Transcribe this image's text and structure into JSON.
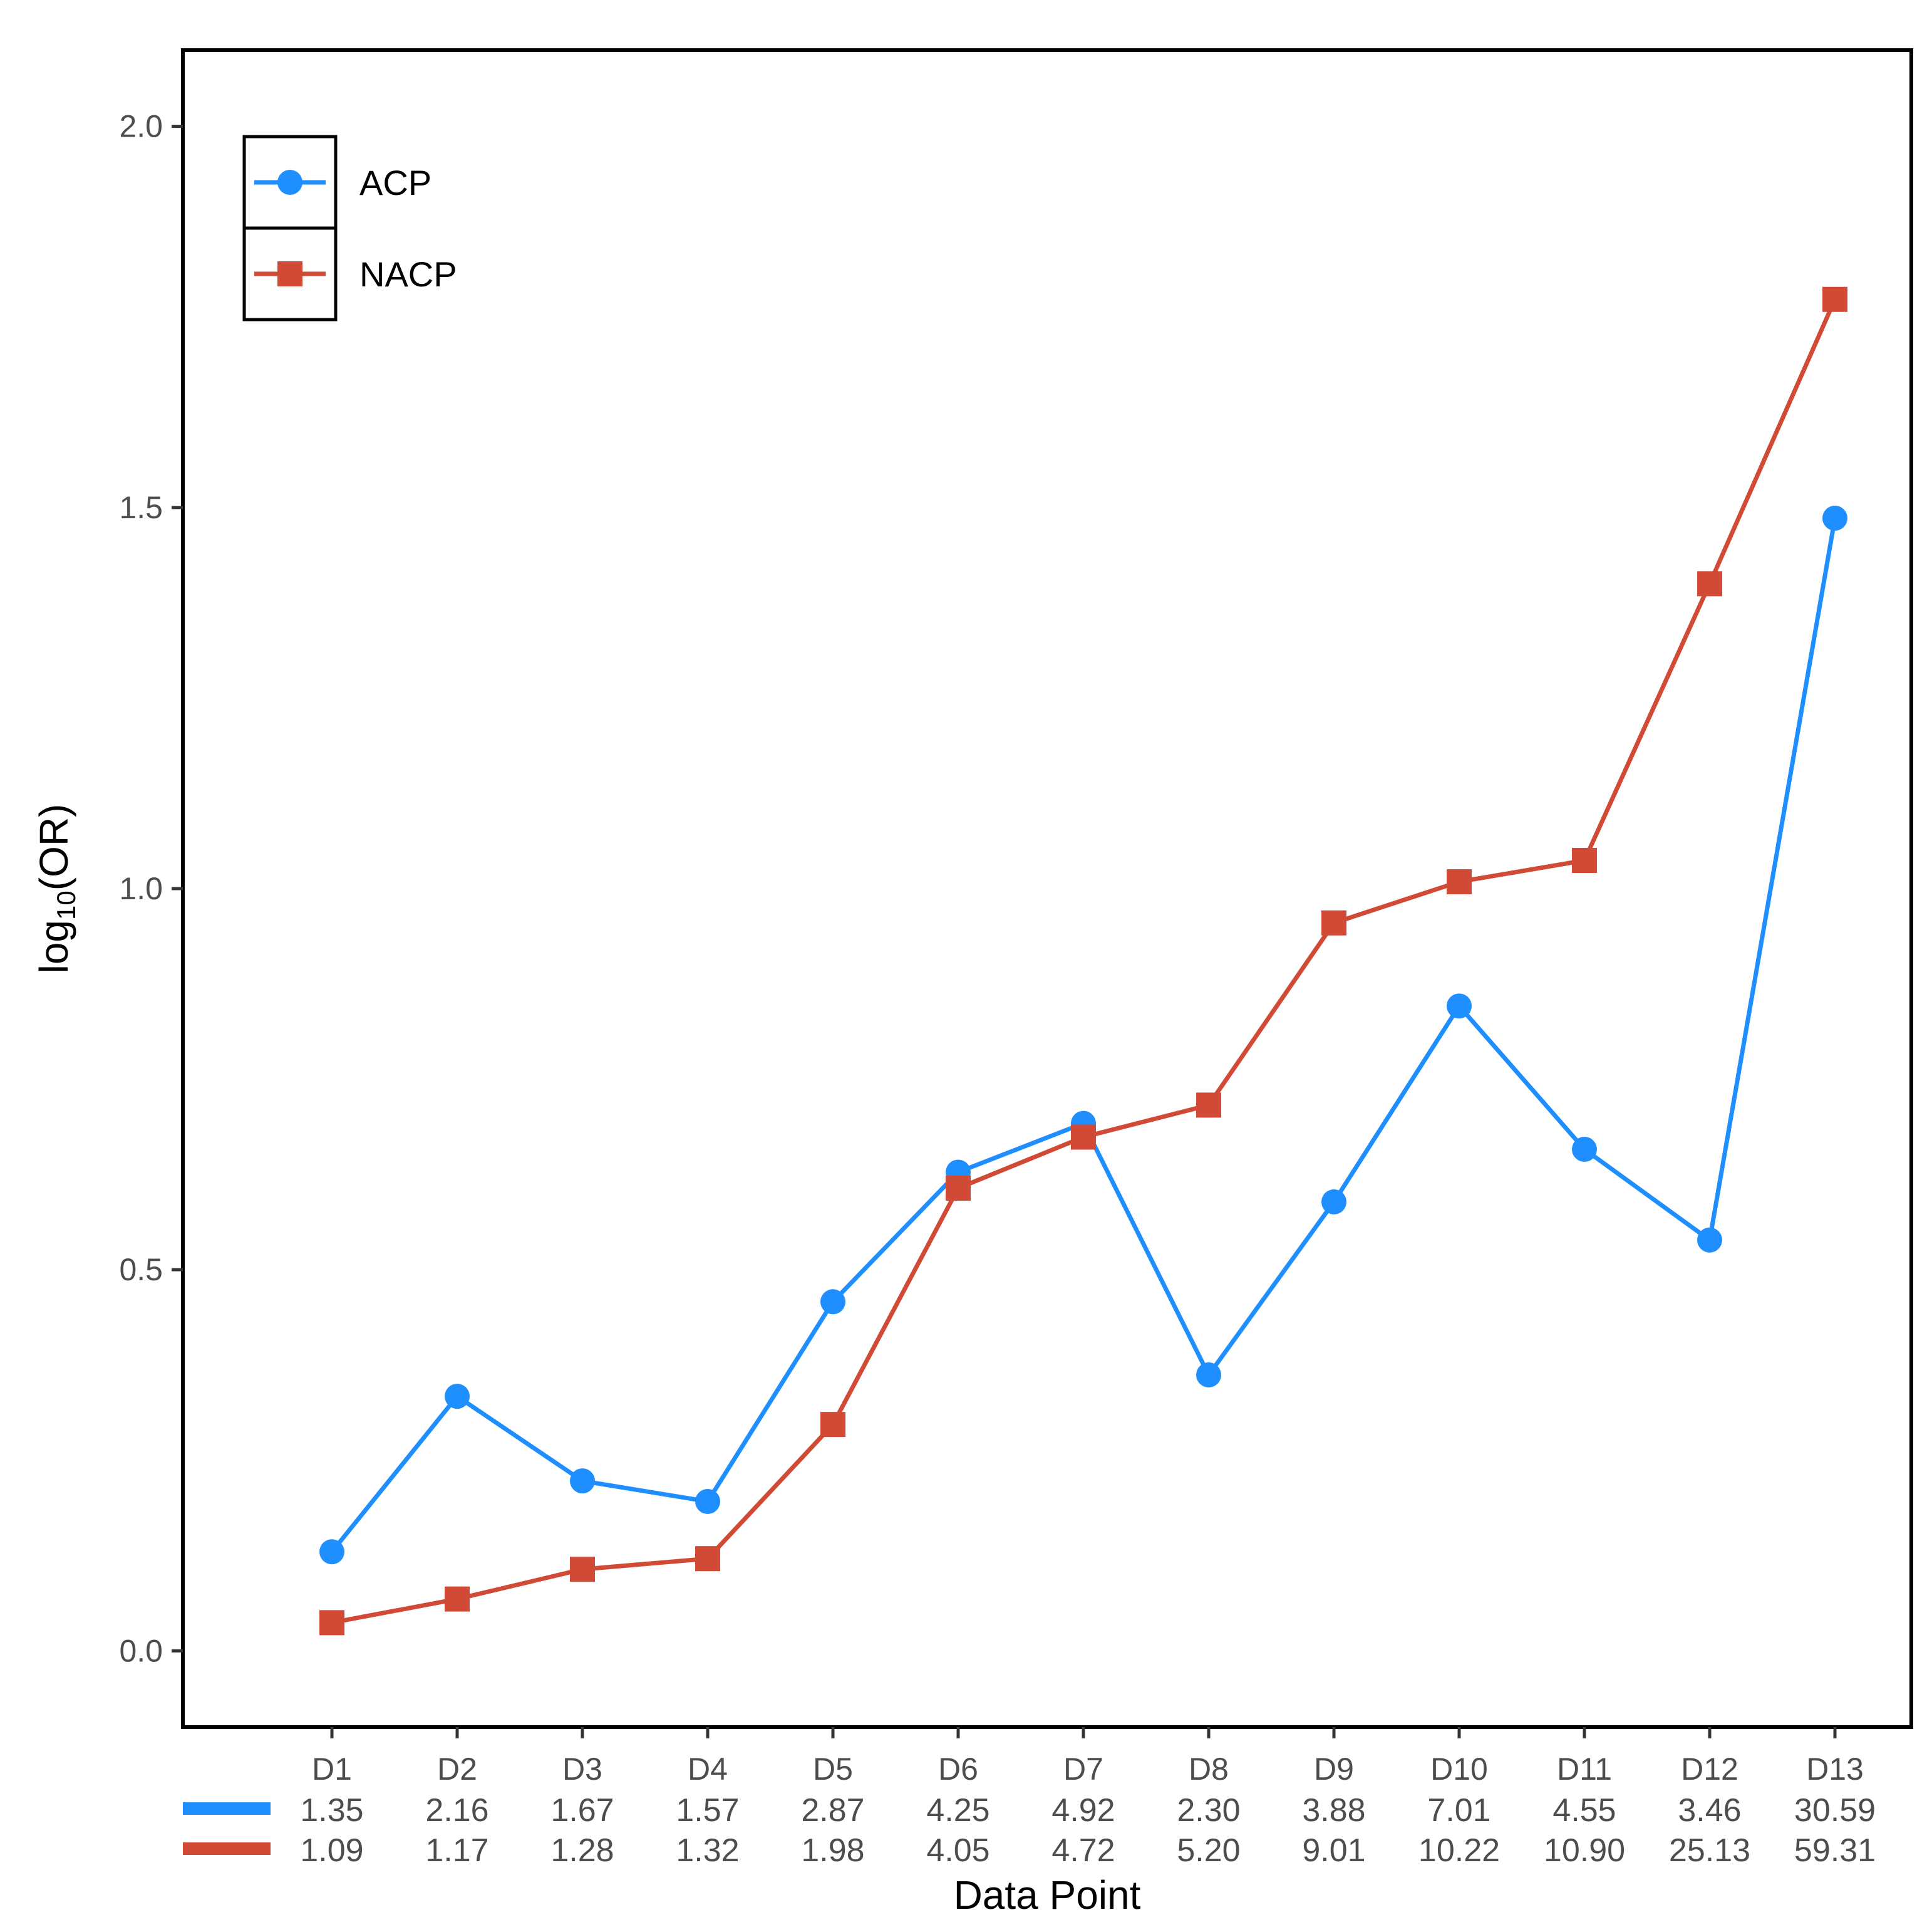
{
  "chart_data": {
    "type": "line",
    "title": "",
    "xlabel": "Data Point",
    "ylabel": {
      "prefix": "log",
      "subscript": "10",
      "suffix": "(OR)"
    },
    "ylim": [
      -0.1,
      2.1
    ],
    "yticks": [
      "0.0",
      "0.5",
      "1.0",
      "1.5",
      "2.0"
    ],
    "grid": false,
    "legend_position": "top-left",
    "categories": [
      "D1",
      "D2",
      "D3",
      "D4",
      "D5",
      "D6",
      "D7",
      "D8",
      "D9",
      "D10",
      "D11",
      "D12",
      "D13"
    ],
    "series": [
      {
        "name": "ACP",
        "color": "#1f8fff",
        "marker": "circle",
        "values": [
          0.13,
          0.334,
          0.223,
          0.196,
          0.458,
          0.628,
          0.692,
          0.362,
          0.589,
          0.846,
          0.658,
          0.539,
          1.486
        ],
        "table_values": [
          "1.35",
          "2.16",
          "1.67",
          "1.57",
          "2.87",
          "4.25",
          "4.92",
          "2.30",
          "3.88",
          "7.01",
          "4.55",
          "3.46",
          "30.59"
        ]
      },
      {
        "name": "NACP",
        "color": "#d04a35",
        "marker": "square",
        "values": [
          0.037,
          0.068,
          0.107,
          0.121,
          0.297,
          0.607,
          0.674,
          0.716,
          0.955,
          1.009,
          1.037,
          1.4,
          1.773
        ],
        "table_values": [
          "1.09",
          "1.17",
          "1.28",
          "1.32",
          "1.98",
          "4.05",
          "4.72",
          "5.20",
          "9.01",
          "10.22",
          "10.90",
          "25.13",
          "59.31"
        ]
      }
    ]
  }
}
